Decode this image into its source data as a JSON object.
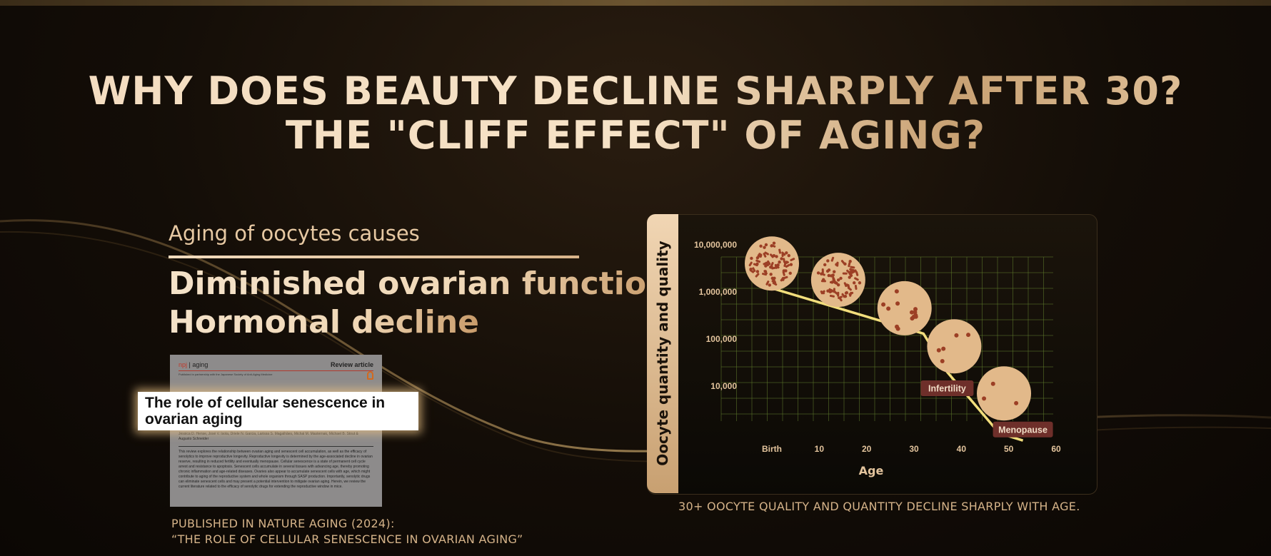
{
  "headline": {
    "line1": "WHY DOES BEAUTY DECLINE SHARPLY AFTER 30?",
    "line2": "THE \"CLIFF EFFECT\" OF AGING?"
  },
  "left": {
    "subhead": "Aging of oocytes causes",
    "line1": "Diminished ovarian function",
    "line2": "Hormonal decline",
    "paper": {
      "journal_brand": "npj",
      "journal_name": "aging",
      "article_type": "Review article",
      "publisher_note": "Published in partnership with the Japanese Society of Anti-Aging Medicine",
      "title": "The role of cellular senescence in ovarian aging",
      "authors": "Jessica D. Hense, José V. Isola, Driele N. Garcia, Larissa S. Magalhães, Michal M. Masternak, Michael B. Stout & Augusto Schneider",
      "abstract": "This review explores the relationship between ovarian aging and senescent cell accumulation, as well as the efficacy of senolytics to improve reproductive longevity. Reproductive longevity is determined by the age-associated decline in ovarian reserve, resulting in reduced fertility and eventually menopause. Cellular senescence is a state of permanent cell cycle arrest and resistance to apoptosis. Senescent cells accumulate in several tissues with advancing age, thereby promoting chronic inflammation and age-related diseases. Ovaries also appear to accumulate senescent cells with age, which might contribute to aging of the reproductive system and whole organism through SASP production. Importantly, senolytic drugs can eliminate senescent cells and may present a potential intervention to mitigate ovarian aging. Herein, we review the current literature related to the efficacy of senolytic drugs for extending the reproductive window in mice."
    },
    "pub_line1": "PUBLISHED IN NATURE AGING (2024):",
    "pub_line2": "“THE ROLE OF CELLULAR SENESCENCE IN OVARIAN AGING”"
  },
  "caption": "30+ OOCYTE QUALITY AND QUANTITY DECLINE SHARPLY WITH AGE.",
  "colors": {
    "line": "#f2de7c",
    "grid": "#5f7a2c",
    "cell": "#e2b98a",
    "cell_dots": "#9c3f25",
    "label_bg": "#6e2f2a",
    "axis_text": "#e3c49d"
  },
  "chart_data": {
    "type": "line",
    "xlabel": "Age",
    "ylabel": "Oocyte quantity and quality",
    "x_ticks": [
      "Birth",
      "10",
      "20",
      "30",
      "40",
      "50",
      "60"
    ],
    "y_ticks": [
      "10,000,000",
      "1,000,000",
      "100,000",
      "10,000"
    ],
    "y_scale": "log",
    "ylim": [
      300,
      10000000
    ],
    "xlim": [
      -5,
      62
    ],
    "grid": true,
    "series": [
      {
        "x": [
          -5,
          0,
          32,
          37,
          48,
          53
        ],
        "y": [
          7000000,
          1200000,
          130000,
          20000,
          1000,
          700
        ]
      }
    ],
    "annotations": [
      {
        "text": "Infertility",
        "x": 37,
        "y": 9000
      },
      {
        "text": "Menopause",
        "x": 53,
        "y": 1200
      }
    ],
    "illustrations": [
      {
        "name": "oocyte-birth",
        "x": 0,
        "y": 4000000,
        "density": "high"
      },
      {
        "name": "oocyte-15",
        "x": 14,
        "y": 1800000,
        "density": "high"
      },
      {
        "name": "oocyte-30",
        "x": 28,
        "y": 450000,
        "density": "medium"
      },
      {
        "name": "oocyte-40",
        "x": 38.5,
        "y": 70000,
        "density": "low"
      },
      {
        "name": "oocyte-50",
        "x": 49,
        "y": 7000,
        "density": "very-low"
      }
    ]
  }
}
